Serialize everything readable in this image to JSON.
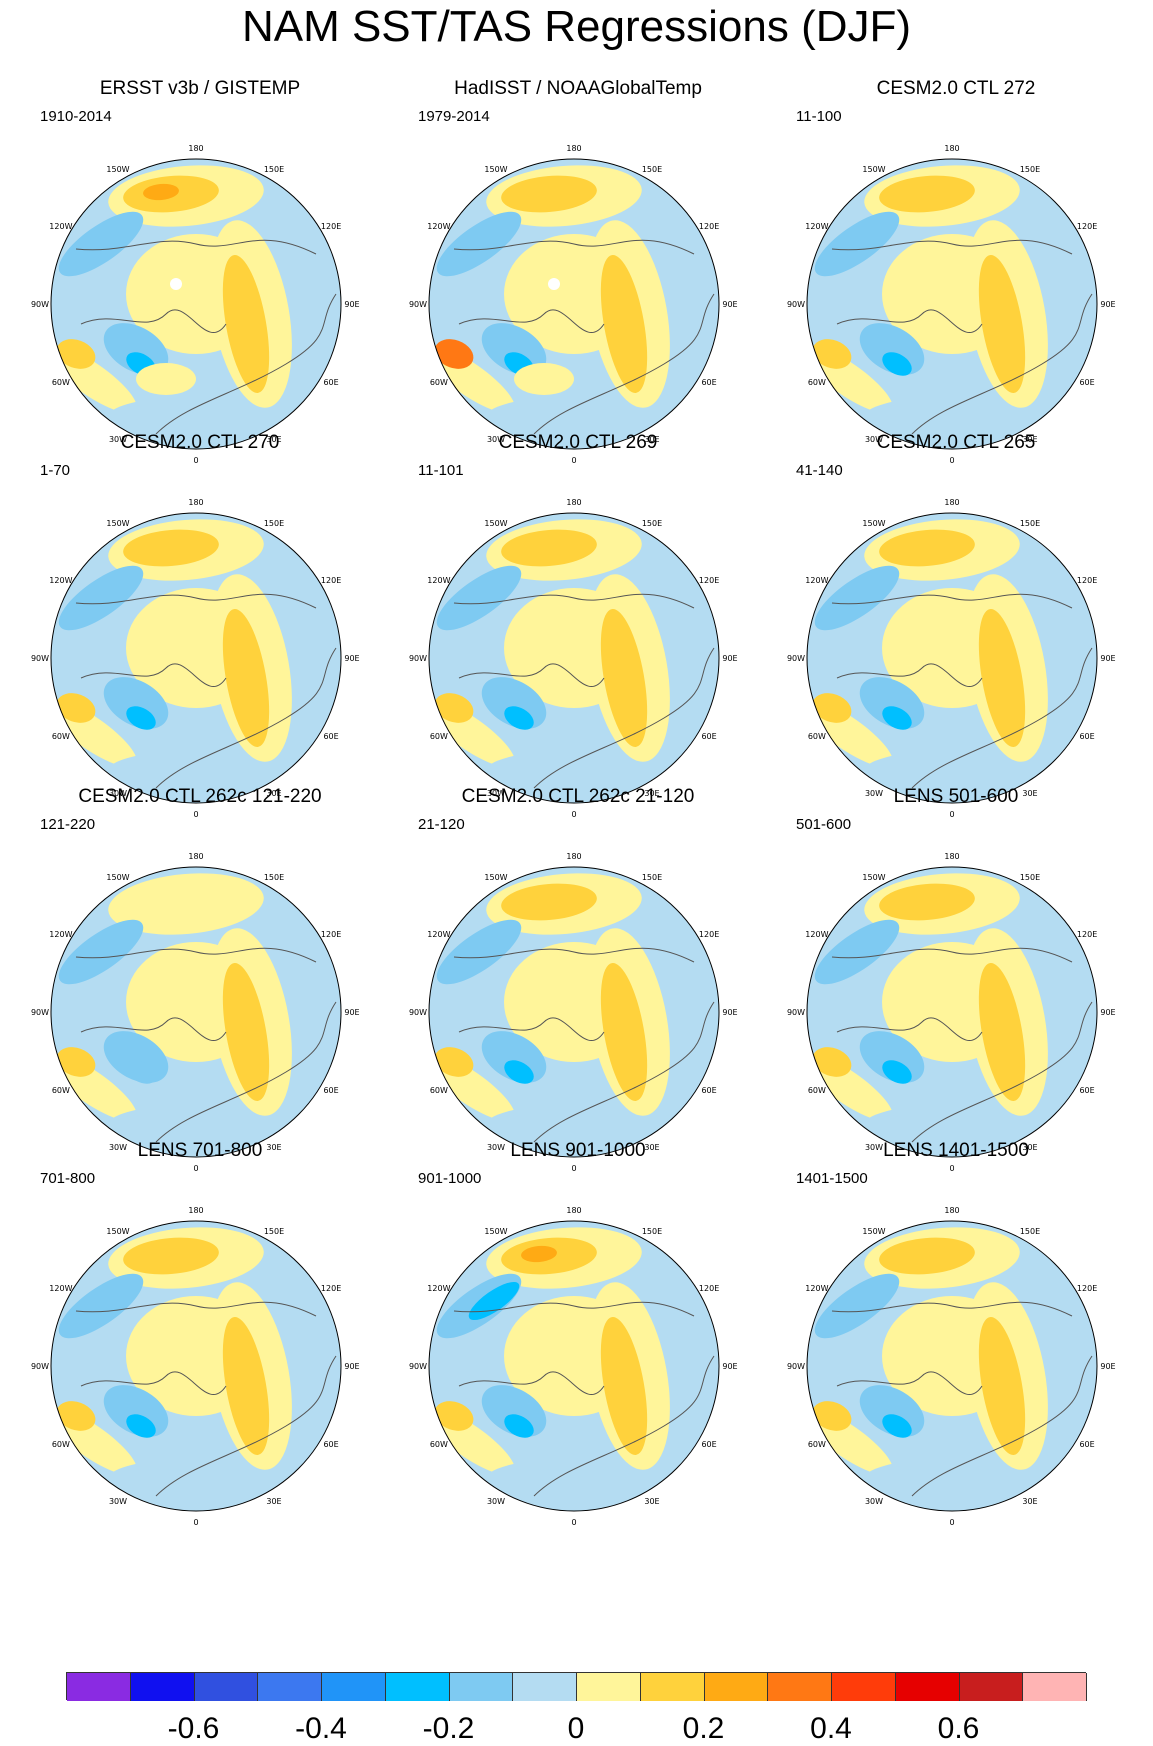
{
  "title": "NAM SST/TAS Regressions (DJF)",
  "longitude_labels": [
    "180",
    "150E",
    "120E",
    "90E",
    "60E",
    "30E",
    "0",
    "30W",
    "60W",
    "90W",
    "120W",
    "150W"
  ],
  "panels": [
    {
      "title": "ERSST v3b / GISTEMP",
      "years": "1910-2014",
      "pattern": "obs"
    },
    {
      "title": "HadISST / NOAAGlobalTemp",
      "years": "1979-2014",
      "pattern": "obs2"
    },
    {
      "title": "CESM2.0 CTL 272",
      "years": "11-100",
      "pattern": "model"
    },
    {
      "title": "CESM2.0 CTL 270",
      "years": "1-70",
      "pattern": "model"
    },
    {
      "title": "CESM2.0 CTL 269",
      "years": "11-101",
      "pattern": "model"
    },
    {
      "title": "CESM2.0 CTL 265",
      "years": "41-140",
      "pattern": "model"
    },
    {
      "title": "CESM2.0 CTL 262c 121-220",
      "years": "121-220",
      "pattern": "weak"
    },
    {
      "title": "CESM2.0 CTL 262c 21-120",
      "years": "21-120",
      "pattern": "model"
    },
    {
      "title": "LENS 501-600",
      "years": "501-600",
      "pattern": "model"
    },
    {
      "title": "LENS 701-800",
      "years": "701-800",
      "pattern": "model"
    },
    {
      "title": "LENS 901-1000",
      "years": "901-1000",
      "pattern": "strong"
    },
    {
      "title": "LENS 1401-1500",
      "years": "1401-1500",
      "pattern": "model"
    }
  ],
  "colorbar": {
    "colors": [
      "#8a2be2",
      "#1010f0",
      "#3050e0",
      "#3c78f0",
      "#2094f8",
      "#00bfff",
      "#7ecaf2",
      "#b4dcf2",
      "#fff59a",
      "#ffd23c",
      "#ffaa14",
      "#ff7814",
      "#ff3c0a",
      "#e60000",
      "#c81e1e",
      "#ffb4b4"
    ],
    "tick_labels": [
      "-0.6",
      "-0.4",
      "-0.2",
      "0",
      "0.2",
      "0.4",
      "0.6"
    ],
    "tick_values": [
      -0.6,
      -0.4,
      -0.2,
      0,
      0.2,
      0.4,
      0.6
    ],
    "min": -0.8,
    "max": 0.8
  }
}
